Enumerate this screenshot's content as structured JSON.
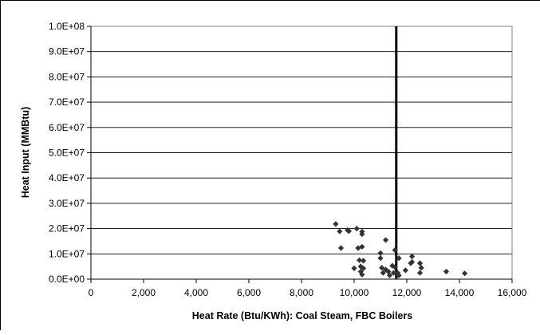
{
  "chart_data": {
    "type": "scatter",
    "title": "",
    "xlabel": "Heat Rate (Btu/KWh): Coal Steam, FBC Boilers",
    "ylabel": "Heat Input (MMBtu)",
    "xlim": [
      0,
      16000
    ],
    "ylim": [
      0,
      100000000
    ],
    "grid": "horizontal",
    "x_ticks": [
      0,
      2000,
      4000,
      6000,
      8000,
      10000,
      12000,
      14000,
      16000
    ],
    "x_tick_labels": [
      "0",
      "2,000",
      "4,000",
      "6,000",
      "8,000",
      "10,000",
      "12,000",
      "14,000",
      "16,000"
    ],
    "y_ticks": [
      0,
      10000000,
      20000000,
      30000000,
      40000000,
      50000000,
      60000000,
      70000000,
      80000000,
      90000000,
      100000000
    ],
    "y_tick_labels": [
      "0.0E+00",
      "1.0E+07",
      "2.0E+07",
      "3.0E+07",
      "4.0E+07",
      "5.0E+07",
      "6.0E+07",
      "7.0E+07",
      "8.0E+07",
      "9.0E+07",
      "1.0E+08"
    ],
    "series": [
      {
        "marker": "diamond",
        "color": "#333333",
        "points": [
          [
            9300,
            21800000
          ],
          [
            9450,
            18900000
          ],
          [
            9500,
            12300000
          ],
          [
            9750,
            19400000
          ],
          [
            9800,
            19000000
          ],
          [
            10000,
            4300000
          ],
          [
            10100,
            20000000
          ],
          [
            10150,
            12300000
          ],
          [
            10200,
            7500000
          ],
          [
            10250,
            5000000
          ],
          [
            10250,
            3000000
          ],
          [
            10300,
            17800000
          ],
          [
            10300,
            18800000
          ],
          [
            10300,
            1800000
          ],
          [
            10300,
            12800000
          ],
          [
            10350,
            7300000
          ],
          [
            10350,
            4300000
          ],
          [
            11000,
            10300000
          ],
          [
            11000,
            8300000
          ],
          [
            11050,
            4500000
          ],
          [
            11100,
            2500000
          ],
          [
            11200,
            15500000
          ],
          [
            11200,
            3800000
          ],
          [
            11300,
            3000000
          ],
          [
            11350,
            1500000
          ],
          [
            11450,
            5300000
          ],
          [
            11500,
            2500000
          ],
          [
            11550,
            4800000
          ],
          [
            11550,
            11500000
          ],
          [
            11650,
            2500000
          ],
          [
            11700,
            8300000
          ],
          [
            11700,
            1500000
          ],
          [
            11950,
            3500000
          ],
          [
            12150,
            6300000
          ],
          [
            12200,
            9000000
          ],
          [
            12200,
            6800000
          ],
          [
            12500,
            6300000
          ],
          [
            12500,
            2500000
          ],
          [
            12550,
            4500000
          ],
          [
            13500,
            3000000
          ],
          [
            14200,
            2300000
          ]
        ]
      }
    ],
    "reference_line": {
      "x": 11600,
      "color": "#000000"
    }
  }
}
